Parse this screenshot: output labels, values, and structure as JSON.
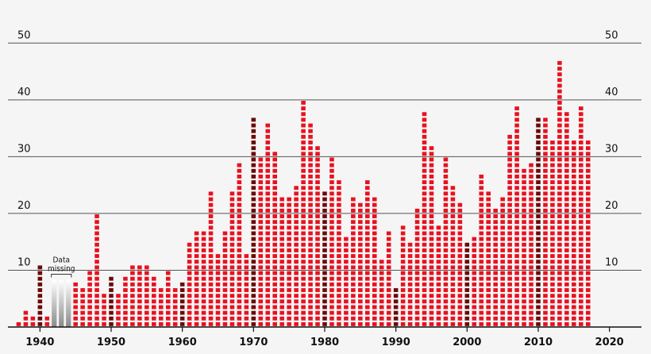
{
  "chart_data": {
    "type": "bar",
    "style": "stacked-unit-squares",
    "x": [
      1937,
      1938,
      1939,
      1940,
      1941,
      1942,
      1943,
      1944,
      1945,
      1946,
      1947,
      1948,
      1949,
      1950,
      1951,
      1952,
      1953,
      1954,
      1955,
      1956,
      1957,
      1958,
      1959,
      1960,
      1961,
      1962,
      1963,
      1964,
      1965,
      1966,
      1967,
      1968,
      1969,
      1970,
      1971,
      1972,
      1973,
      1974,
      1975,
      1976,
      1977,
      1978,
      1979,
      1980,
      1981,
      1982,
      1983,
      1984,
      1985,
      1986,
      1987,
      1988,
      1989,
      1990,
      1991,
      1992,
      1993,
      1994,
      1995,
      1996,
      1997,
      1998,
      1999,
      2000,
      2001,
      2002,
      2003,
      2004,
      2005,
      2006,
      2007,
      2008,
      2009,
      2010,
      2011,
      2012,
      2013,
      2014,
      2015,
      2016,
      2017
    ],
    "values": [
      1,
      3,
      2,
      11,
      2,
      null,
      null,
      null,
      8,
      7,
      10,
      20,
      6,
      9,
      6,
      9,
      11,
      11,
      11,
      9,
      7,
      10,
      7,
      8,
      15,
      17,
      17,
      24,
      13,
      17,
      24,
      29,
      13,
      37,
      30,
      36,
      31,
      23,
      23,
      25,
      40,
      36,
      32,
      24,
      30,
      26,
      16,
      23,
      22,
      26,
      23,
      12,
      17,
      7,
      18,
      15,
      21,
      38,
      32,
      18,
      30,
      25,
      22,
      15,
      16,
      27,
      24,
      21,
      23,
      34,
      39,
      28,
      29,
      37,
      37,
      33,
      47,
      38,
      33,
      39,
      33
    ],
    "highlight_years": [
      1940,
      1950,
      1960,
      1970,
      1980,
      1990,
      2000,
      2010
    ],
    "missing_range": [
      1942,
      1944
    ],
    "missing_label_line1": "Data",
    "missing_label_line2": "missing",
    "ylim": [
      0,
      52
    ],
    "xlim": [
      1935.5,
      2024.5
    ],
    "yticks": [
      10,
      20,
      30,
      40,
      50
    ],
    "xticks": [
      1940,
      1950,
      1960,
      1970,
      1980,
      1990,
      2000,
      2010,
      2020
    ],
    "grid": true,
    "title": "",
    "xlabel": "",
    "ylabel": "",
    "colors": {
      "bar": "#e8111f",
      "highlight": "#6b0a0a",
      "grid": "#555555",
      "axis": "#111111",
      "background": "#f5f5f5"
    }
  }
}
